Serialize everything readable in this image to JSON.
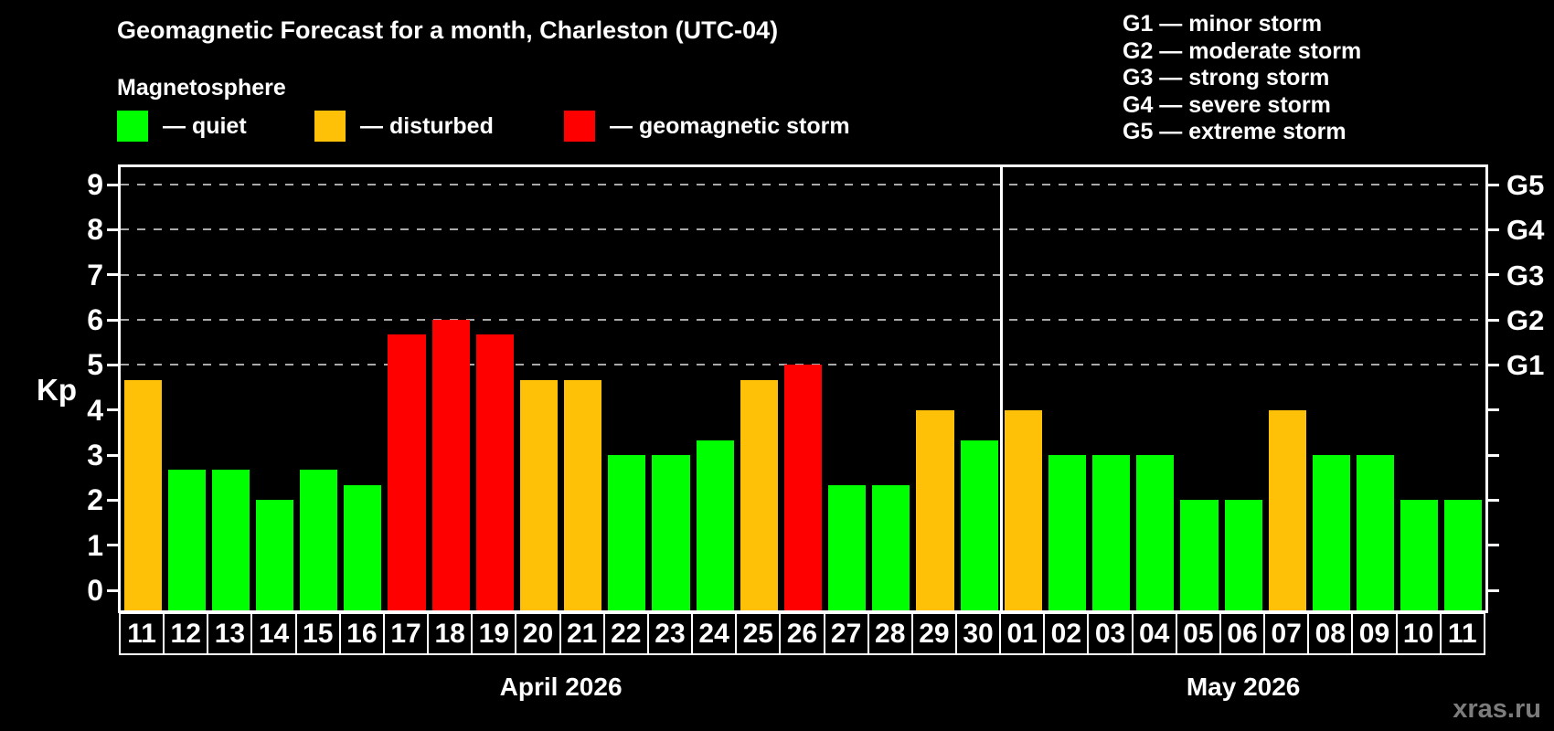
{
  "header": {
    "title": "Geomagnetic Forecast for a month, Charleston (UTC-04)",
    "subtitle": "Magnetosphere"
  },
  "legend": {
    "items": [
      {
        "name": "quiet",
        "label": "— quiet",
        "color": "#00ff00"
      },
      {
        "name": "disturbed",
        "label": "— disturbed",
        "color": "#ffc107"
      },
      {
        "name": "storm",
        "label": "— geomagnetic storm",
        "color": "#ff0000"
      }
    ]
  },
  "storm_scale_legend": [
    "G1 — minor storm",
    "G2 — moderate storm",
    "G3 — strong storm",
    "G4 — severe storm",
    "G5 — extreme storm"
  ],
  "watermark": "xras.ru",
  "chart_data": {
    "type": "bar",
    "ylabel": "Kp",
    "ylim": [
      -0.45,
      9.4
    ],
    "yticks": [
      0,
      1,
      2,
      3,
      4,
      5,
      6,
      7,
      8,
      9
    ],
    "gridlines_at": [
      5,
      6,
      7,
      8,
      9
    ],
    "grid": "dashed horizontal at G-storm levels only",
    "right_axis_labels": [
      {
        "level": 5,
        "label": "G1"
      },
      {
        "level": 6,
        "label": "G2"
      },
      {
        "level": 7,
        "label": "G3"
      },
      {
        "level": 8,
        "label": "G4"
      },
      {
        "level": 9,
        "label": "G5"
      }
    ],
    "colors": {
      "quiet": "#00ff00",
      "disturbed": "#ffc107",
      "storm": "#ff0000"
    },
    "months": [
      {
        "label": "April 2026",
        "days": 20
      },
      {
        "label": "May 2026",
        "days": 11
      }
    ],
    "days": [
      "11",
      "12",
      "13",
      "14",
      "15",
      "16",
      "17",
      "18",
      "19",
      "20",
      "21",
      "22",
      "23",
      "24",
      "25",
      "26",
      "27",
      "28",
      "29",
      "30",
      "01",
      "02",
      "03",
      "04",
      "05",
      "06",
      "07",
      "08",
      "09",
      "10",
      "11"
    ],
    "values": [
      4.67,
      2.67,
      2.67,
      2.0,
      2.67,
      2.33,
      5.67,
      6.0,
      5.67,
      4.67,
      4.67,
      3.0,
      3.0,
      3.33,
      4.67,
      5.0,
      2.33,
      2.33,
      4.0,
      3.33,
      4.0,
      3.0,
      3.0,
      3.0,
      2.0,
      2.0,
      4.0,
      3.0,
      3.0,
      2.0,
      2.0
    ],
    "statuses": [
      "disturbed",
      "quiet",
      "quiet",
      "quiet",
      "quiet",
      "quiet",
      "storm",
      "storm",
      "storm",
      "disturbed",
      "disturbed",
      "quiet",
      "quiet",
      "quiet",
      "disturbed",
      "storm",
      "quiet",
      "quiet",
      "disturbed",
      "quiet",
      "disturbed",
      "quiet",
      "quiet",
      "quiet",
      "quiet",
      "quiet",
      "disturbed",
      "quiet",
      "quiet",
      "quiet",
      "quiet"
    ]
  }
}
